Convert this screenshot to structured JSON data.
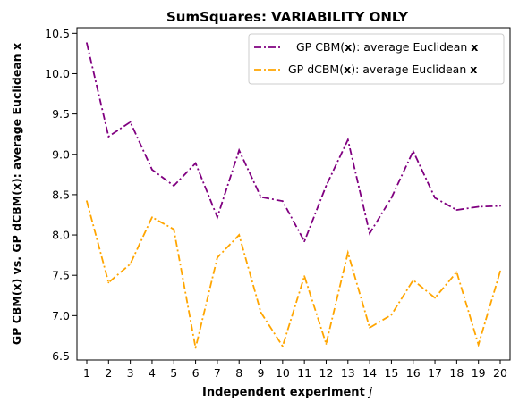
{
  "chart_data": {
    "type": "line",
    "title": "SumSquares: VARIABILITY ONLY",
    "xlabel": "Independent experiment",
    "xlabel_var": "j",
    "ylabel": "GP CBM(x) vs. GP dCBM(x): average Euclidean x",
    "categories": [
      1,
      2,
      3,
      4,
      5,
      6,
      7,
      8,
      9,
      10,
      11,
      12,
      13,
      14,
      15,
      16,
      17,
      18,
      19,
      20
    ],
    "ylim": [
      6.45,
      10.57
    ],
    "yticks": [
      6.5,
      7.0,
      7.5,
      8.0,
      8.5,
      9.0,
      9.5,
      10.0,
      10.5
    ],
    "ytick_labels": [
      "6.5",
      "7.0",
      "7.5",
      "8.0",
      "8.5",
      "9.0",
      "9.5",
      "10.0",
      "10.5"
    ],
    "grid": false,
    "legend_position": "top-right",
    "series": [
      {
        "name": "GP CBM(x): average Euclidean x",
        "legend_prefix": "GP CBM(",
        "legend_bold": "x",
        "legend_suffix": "): average Euclidean ",
        "legend_tail_bold": "x",
        "color": "#800080",
        "values": [
          10.38,
          9.22,
          9.4,
          8.81,
          8.61,
          8.89,
          8.22,
          9.05,
          8.47,
          8.42,
          7.92,
          8.61,
          9.18,
          8.02,
          8.46,
          9.04,
          8.46,
          8.31,
          8.35,
          8.36
        ]
      },
      {
        "name": "GP dCBM(x): average Euclidean x",
        "legend_prefix": "GP dCBM(",
        "legend_bold": "x",
        "legend_suffix": "): average Euclidean ",
        "legend_tail_bold": "x",
        "color": "#FFA500",
        "values": [
          8.42,
          7.41,
          7.64,
          8.22,
          8.07,
          6.6,
          7.72,
          8.0,
          7.04,
          6.62,
          7.49,
          6.65,
          7.78,
          6.85,
          7.01,
          7.44,
          7.22,
          7.54,
          6.64,
          7.55
        ]
      }
    ]
  }
}
